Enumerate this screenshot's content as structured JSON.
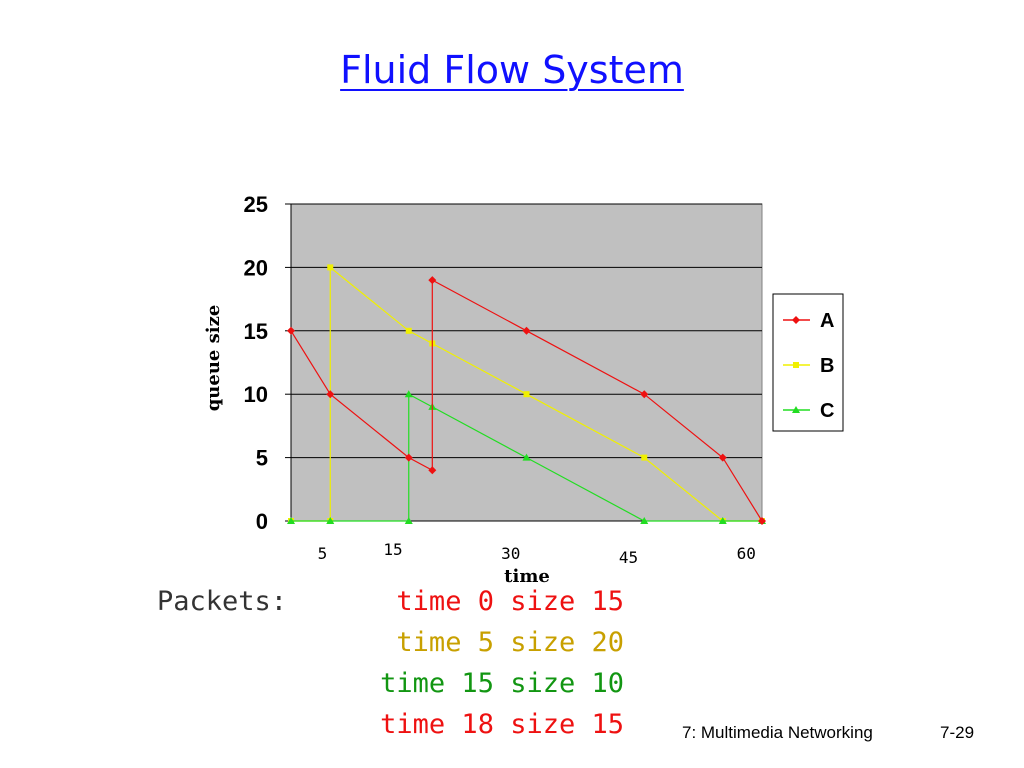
{
  "slide": {
    "title": "Fluid Flow System",
    "footer_course": "7: Multimedia Networking",
    "footer_page": "7-29"
  },
  "packets": {
    "label": "Packets:",
    "lines": [
      {
        "text": "time 0 size 15",
        "color": "#ee1111"
      },
      {
        "text": "time 5 size 20",
        "color": "#c8a000"
      },
      {
        "text": "time 15 size 10",
        "color": "#129612"
      },
      {
        "text": "time 18 size 15",
        "color": "#ee1111"
      }
    ]
  },
  "chart_data": {
    "type": "line",
    "xlabel": "time",
    "ylabel": "queue size",
    "ylim": [
      0,
      25
    ],
    "xlim": [
      0,
      60
    ],
    "y_ticks": [
      0,
      5,
      10,
      15,
      20,
      25
    ],
    "x_tick_labels": [
      "5",
      "15",
      "30",
      "45",
      "60"
    ],
    "x_tick_values": [
      4,
      13,
      28,
      43,
      58
    ],
    "grid": true,
    "plot_background": "#c0c0c0",
    "legend_position": "right",
    "series": [
      {
        "name": "A",
        "color": "#ee1111",
        "marker": "diamond",
        "x": [
          0,
          5,
          15,
          18,
          18,
          30,
          45,
          55,
          60
        ],
        "y": [
          15,
          10,
          5,
          4,
          19,
          15,
          10,
          5,
          0
        ]
      },
      {
        "name": "B",
        "color": "#f0f000",
        "marker": "square",
        "x": [
          0,
          5,
          5,
          15,
          18,
          30,
          45,
          55,
          60
        ],
        "y": [
          0,
          0,
          20,
          15,
          14,
          10,
          5,
          0,
          0
        ]
      },
      {
        "name": "C",
        "color": "#22dd22",
        "marker": "triangle",
        "x": [
          0,
          5,
          15,
          15,
          18,
          30,
          45,
          55,
          60
        ],
        "y": [
          0,
          0,
          0,
          10,
          9,
          5,
          0,
          0,
          0
        ]
      }
    ]
  }
}
